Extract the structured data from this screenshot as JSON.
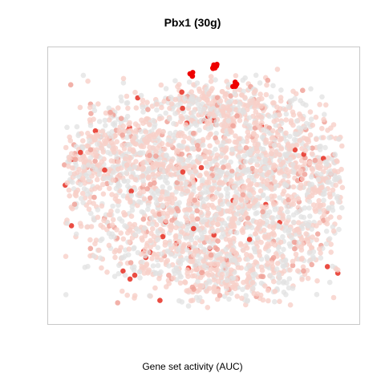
{
  "chart_data": {
    "type": "scatter",
    "title": "Pbx1 (30g)",
    "xlabel": "Gene set activity (AUC)",
    "ylabel": "",
    "grid": false,
    "legend": "none",
    "colors": {
      "low": "#e2e2e2",
      "mid": "#f8cfc8",
      "high": "#e83a2f",
      "max": "#ee0000",
      "frame": "#c8c8c8"
    },
    "xlim": [
      0,
      100
    ],
    "ylim": [
      0,
      100
    ],
    "clusters": [
      {
        "cx": 55,
        "cy": 82,
        "sx": 12,
        "sy": 5,
        "n": 300
      },
      {
        "cx": 22,
        "cy": 62,
        "sx": 12,
        "sy": 11,
        "n": 500
      },
      {
        "cx": 45,
        "cy": 55,
        "sx": 14,
        "sy": 12,
        "n": 500
      },
      {
        "cx": 76,
        "cy": 64,
        "sx": 12,
        "sy": 10,
        "n": 500
      },
      {
        "cx": 40,
        "cy": 30,
        "sx": 16,
        "sy": 11,
        "n": 550
      },
      {
        "cx": 76,
        "cy": 34,
        "sx": 13,
        "sy": 12,
        "n": 500
      },
      {
        "cx": 57,
        "cy": 15,
        "sx": 11,
        "sy": 6,
        "n": 250
      },
      {
        "cx": 92,
        "cy": 52,
        "sx": 4,
        "sy": 6,
        "n": 80
      },
      {
        "cx": 8,
        "cy": 55,
        "sx": 4,
        "sy": 8,
        "n": 90
      }
    ],
    "highlights": [
      {
        "x": 53.5,
        "y": 96.4,
        "n": 12
      },
      {
        "x": 61.0,
        "y": 89.5,
        "n": 10
      },
      {
        "x": 46.0,
        "y": 94.0,
        "n": 4
      }
    ]
  }
}
